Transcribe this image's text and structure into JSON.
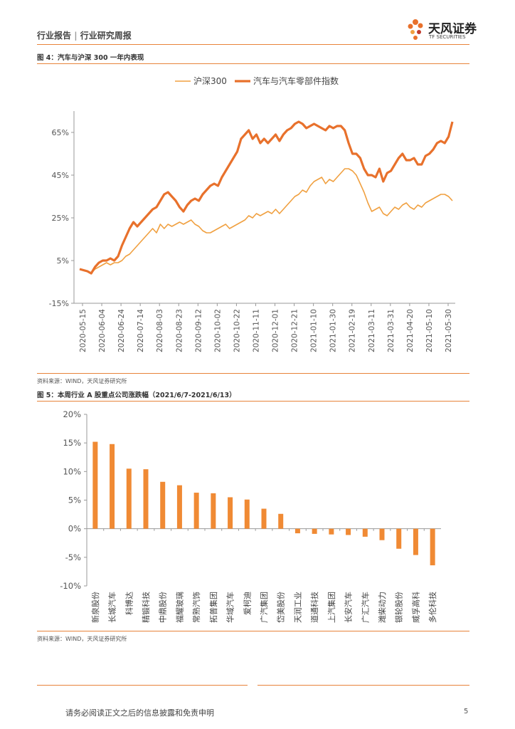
{
  "header": {
    "left_text": "行业报告",
    "right_text": "行业研究周报",
    "logo_name": "天风证券",
    "logo_sub": "TF SECURITIES"
  },
  "figure4": {
    "title": "图 4：汽车与沪深 300 一年内表现",
    "source": "资料来源：WIND，天风证券研究所"
  },
  "figure5": {
    "title": "图 5：本周行业 A 股重点公司涨跌幅（2021/6/7-2021/6/13）",
    "source": "资料来源：WIND，天风证券研究所"
  },
  "footer": {
    "disclaimer": "请务必阅读正文之后的信息披露和免责申明",
    "page": "5"
  },
  "colors": {
    "accent": "#e8833a",
    "line_thin": "#f0a040",
    "line_thick": "#e8712c",
    "bar": "#f08a34"
  },
  "chart_data": [
    {
      "type": "line",
      "title": "",
      "xlabel": "",
      "ylabel": "",
      "ylim": [
        -15,
        75
      ],
      "yticks": [
        -15,
        5,
        25,
        45,
        65
      ],
      "ytick_labels": [
        "-15%",
        "5%",
        "25%",
        "45%",
        "65%"
      ],
      "xtick_labels": [
        "2020-05-15",
        "2020-06-04",
        "2020-06-24",
        "2020-07-14",
        "2020-08-03",
        "2020-08-23",
        "2020-09-12",
        "2020-10-02",
        "2020-10-22",
        "2020-11-11",
        "2020-12-01",
        "2020-12-21",
        "2021-01-10",
        "2021-01-30",
        "2021-02-19",
        "2021-03-11",
        "2021-03-31",
        "2021-04-20",
        "2021-05-10",
        "2021-05-30"
      ],
      "legend_position": "top-center",
      "series": [
        {
          "name": "沪深300",
          "points": [
            [
              0,
              1
            ],
            [
              4,
              0
            ],
            [
              6,
              -1
            ],
            [
              8,
              1
            ],
            [
              10,
              2
            ],
            [
              12,
              3
            ],
            [
              14,
              4
            ],
            [
              16,
              3
            ],
            [
              18,
              4
            ],
            [
              20,
              4
            ],
            [
              22,
              5
            ],
            [
              24,
              7
            ],
            [
              26,
              8
            ],
            [
              28,
              10
            ],
            [
              30,
              12
            ],
            [
              32,
              14
            ],
            [
              34,
              16
            ],
            [
              36,
              18
            ],
            [
              38,
              20
            ],
            [
              40,
              18
            ],
            [
              42,
              22
            ],
            [
              44,
              20
            ],
            [
              46,
              22
            ],
            [
              48,
              21
            ],
            [
              50,
              22
            ],
            [
              52,
              23
            ],
            [
              54,
              22
            ],
            [
              56,
              23
            ],
            [
              58,
              24
            ],
            [
              60,
              22
            ],
            [
              62,
              21
            ],
            [
              64,
              19
            ],
            [
              66,
              18
            ],
            [
              68,
              18
            ],
            [
              70,
              19
            ],
            [
              72,
              20
            ],
            [
              74,
              21
            ],
            [
              76,
              22
            ],
            [
              78,
              20
            ],
            [
              80,
              21
            ],
            [
              82,
              22
            ],
            [
              84,
              23
            ],
            [
              86,
              24
            ],
            [
              88,
              26
            ],
            [
              90,
              25
            ],
            [
              92,
              27
            ],
            [
              94,
              26
            ],
            [
              96,
              27
            ],
            [
              98,
              28
            ],
            [
              100,
              27
            ],
            [
              102,
              29
            ],
            [
              104,
              27
            ],
            [
              106,
              29
            ],
            [
              108,
              31
            ],
            [
              110,
              33
            ],
            [
              112,
              35
            ],
            [
              114,
              36
            ],
            [
              116,
              38
            ],
            [
              118,
              37
            ],
            [
              120,
              40
            ],
            [
              122,
              42
            ],
            [
              124,
              43
            ],
            [
              126,
              44
            ],
            [
              128,
              41
            ],
            [
              130,
              43
            ],
            [
              132,
              42
            ],
            [
              134,
              44
            ],
            [
              136,
              46
            ],
            [
              138,
              48
            ],
            [
              140,
              48
            ],
            [
              142,
              47
            ],
            [
              144,
              45
            ],
            [
              146,
              41
            ],
            [
              148,
              37
            ],
            [
              150,
              32
            ],
            [
              152,
              28
            ],
            [
              154,
              29
            ],
            [
              156,
              30
            ],
            [
              158,
              27
            ],
            [
              160,
              26
            ],
            [
              162,
              28
            ],
            [
              164,
              30
            ],
            [
              166,
              29
            ],
            [
              168,
              31
            ],
            [
              170,
              32
            ],
            [
              172,
              30
            ],
            [
              174,
              29
            ],
            [
              176,
              31
            ],
            [
              178,
              30
            ],
            [
              180,
              32
            ],
            [
              182,
              33
            ],
            [
              184,
              34
            ],
            [
              186,
              35
            ],
            [
              188,
              36
            ],
            [
              190,
              36
            ],
            [
              192,
              35
            ],
            [
              194,
              33
            ]
          ]
        },
        {
          "name": "汽车与汽车零部件指数",
          "points": [
            [
              0,
              1
            ],
            [
              4,
              0
            ],
            [
              6,
              -1
            ],
            [
              8,
              2
            ],
            [
              10,
              4
            ],
            [
              12,
              5
            ],
            [
              14,
              5
            ],
            [
              16,
              6
            ],
            [
              18,
              5
            ],
            [
              20,
              7
            ],
            [
              22,
              12
            ],
            [
              24,
              16
            ],
            [
              26,
              20
            ],
            [
              28,
              23
            ],
            [
              30,
              21
            ],
            [
              32,
              23
            ],
            [
              34,
              25
            ],
            [
              36,
              27
            ],
            [
              38,
              29
            ],
            [
              40,
              30
            ],
            [
              42,
              33
            ],
            [
              44,
              36
            ],
            [
              46,
              37
            ],
            [
              48,
              35
            ],
            [
              50,
              33
            ],
            [
              52,
              30
            ],
            [
              54,
              28
            ],
            [
              56,
              31
            ],
            [
              58,
              33
            ],
            [
              60,
              34
            ],
            [
              62,
              33
            ],
            [
              64,
              36
            ],
            [
              66,
              38
            ],
            [
              68,
              40
            ],
            [
              70,
              41
            ],
            [
              72,
              40
            ],
            [
              74,
              44
            ],
            [
              76,
              47
            ],
            [
              78,
              50
            ],
            [
              80,
              53
            ],
            [
              82,
              56
            ],
            [
              84,
              62
            ],
            [
              86,
              64
            ],
            [
              88,
              66
            ],
            [
              90,
              62
            ],
            [
              92,
              64
            ],
            [
              94,
              60
            ],
            [
              96,
              62
            ],
            [
              98,
              60
            ],
            [
              100,
              62
            ],
            [
              102,
              64
            ],
            [
              104,
              61
            ],
            [
              106,
              64
            ],
            [
              108,
              66
            ],
            [
              110,
              67
            ],
            [
              112,
              69
            ],
            [
              114,
              70
            ],
            [
              116,
              69
            ],
            [
              118,
              67
            ],
            [
              120,
              68
            ],
            [
              122,
              69
            ],
            [
              124,
              68
            ],
            [
              126,
              67
            ],
            [
              128,
              66
            ],
            [
              130,
              68
            ],
            [
              132,
              67
            ],
            [
              134,
              68
            ],
            [
              136,
              68
            ],
            [
              138,
              66
            ],
            [
              140,
              60
            ],
            [
              142,
              55
            ],
            [
              144,
              55
            ],
            [
              146,
              53
            ],
            [
              148,
              48
            ],
            [
              150,
              45
            ],
            [
              152,
              45
            ],
            [
              154,
              44
            ],
            [
              156,
              48
            ],
            [
              158,
              42
            ],
            [
              160,
              46
            ],
            [
              162,
              47
            ],
            [
              164,
              50
            ],
            [
              166,
              53
            ],
            [
              168,
              55
            ],
            [
              170,
              52
            ],
            [
              172,
              52
            ],
            [
              174,
              53
            ],
            [
              176,
              50
            ],
            [
              178,
              50
            ],
            [
              180,
              54
            ],
            [
              182,
              55
            ],
            [
              184,
              57
            ],
            [
              186,
              60
            ],
            [
              188,
              61
            ],
            [
              190,
              60
            ],
            [
              192,
              63
            ],
            [
              194,
              70
            ]
          ]
        }
      ]
    },
    {
      "type": "bar",
      "title": "",
      "xlabel": "",
      "ylabel": "",
      "ylim": [
        -10,
        20
      ],
      "yticks": [
        -10,
        -5,
        0,
        5,
        10,
        15,
        20
      ],
      "ytick_labels": [
        "-10%",
        "-5%",
        "0%",
        "5%",
        "10%",
        "15%",
        "20%"
      ],
      "categories": [
        "新泉股份",
        "长城汽车",
        "科博达",
        "精锻科技",
        "中鼎股份",
        "福耀玻璃",
        "常熟汽饰",
        "拓普集团",
        "华域汽车",
        "爱柯迪",
        "广汽集团",
        "岱美股份",
        "天润工业",
        "道通科技",
        "上汽集团",
        "长安汽车",
        "广汇汽车",
        "潍柴动力",
        "银轮股份",
        "威孚高科",
        "多伦科技"
      ],
      "values": [
        15.2,
        14.8,
        10.5,
        10.4,
        8.2,
        7.6,
        6.3,
        6.2,
        5.5,
        5.1,
        3.5,
        2.6,
        -0.8,
        -0.9,
        -1.0,
        -1.1,
        -1.4,
        -2.0,
        -3.5,
        -4.6,
        -6.4
      ]
    }
  ]
}
